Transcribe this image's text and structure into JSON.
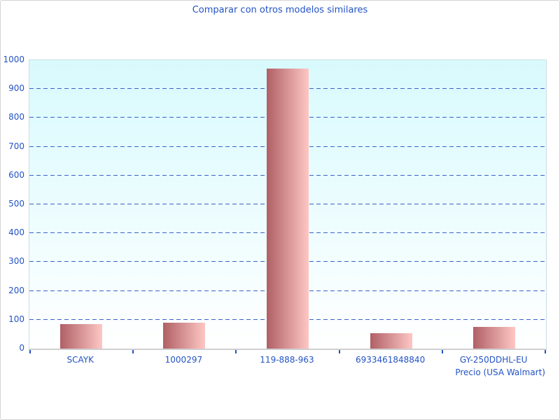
{
  "chart_data": {
    "type": "bar",
    "title": "Comparar con otros modelos similares",
    "categories": [
      "SCAYK",
      "1000297",
      "119-888-963",
      "6933461848840",
      "GY-250DDHL-EU"
    ],
    "values": [
      85,
      90,
      970,
      54,
      76
    ],
    "xlabel": "Precio (USA Walmart)",
    "ylabel": "",
    "ylim": [
      0,
      1000
    ],
    "yticks": [
      0,
      100,
      200,
      300,
      400,
      500,
      600,
      700,
      800,
      900,
      1000
    ],
    "grid": "horizontal-dashed",
    "legend": "none",
    "colors": {
      "title_text": "#2353c4",
      "axis_text": "#2353c4",
      "gridline": "#3a62c8",
      "tick": "#2353c4",
      "bar_gradient_left": "#b06065",
      "bar_gradient_right": "#fec7c4",
      "plot_bg_top": "#d8fafd",
      "plot_bg_bottom": "#ffffff",
      "axis_line": "#cfcfcf",
      "plot_border": "#ccdde4",
      "window_border": "#d3d3d3"
    }
  }
}
